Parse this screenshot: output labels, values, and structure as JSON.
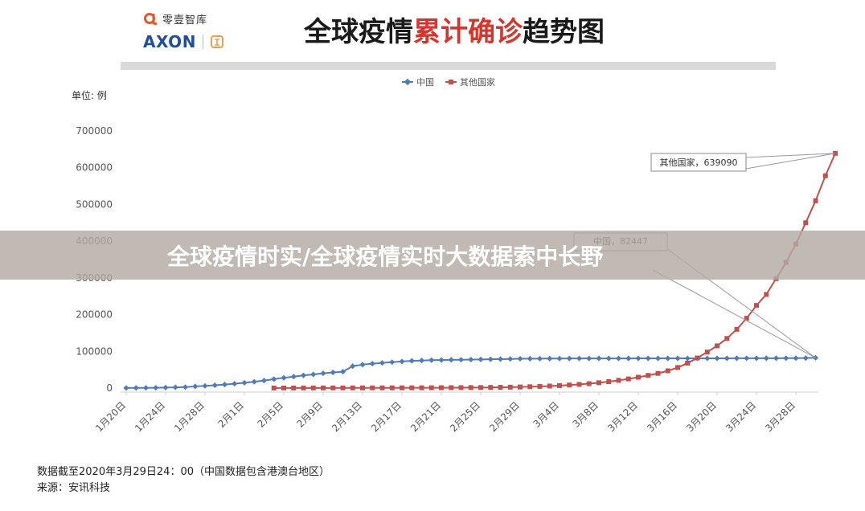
{
  "header": {
    "logo_cn": "零壹智库",
    "logo_en": "AXON",
    "title_part1": "全球疫情",
    "title_highlight": "累计确诊",
    "title_part2": "趋势图"
  },
  "overlay": {
    "text": "全球疫情时实/全球疫情实时大数据索中长野"
  },
  "footer": {
    "line1": "数据截至2020年3月29日24：00（中国数据包含港澳台地区）",
    "line2": "来源：安讯科技"
  },
  "colors": {
    "china": "#4f7bb8",
    "others": "#c0504d",
    "title_accent": "#d8342c"
  },
  "chart_data": {
    "type": "line",
    "unit_label": "单位: 例",
    "ylim": [
      0,
      700000
    ],
    "y_ticks": [
      "0",
      "100000",
      "200000",
      "300000",
      "400000",
      "500000",
      "600000",
      "700000"
    ],
    "x_tick_labels": [
      "1月20日",
      "1月24日",
      "1月28日",
      "2月1日",
      "2月5日",
      "2月9日",
      "2月13日",
      "2月17日",
      "2月21日",
      "2月25日",
      "2月29日",
      "3月4日",
      "3月8日",
      "3月12日",
      "3月16日",
      "3月20日",
      "3月24日",
      "3月28日"
    ],
    "legend_position": "top-center",
    "grid": false,
    "annotations": [
      {
        "series": "其他国家",
        "text": "其他国家，639090"
      },
      {
        "series": "中国",
        "text": "中国，82447"
      }
    ],
    "series": [
      {
        "name": "中国",
        "start": "1月20日",
        "values": [
          291,
          440,
          571,
          830,
          1287,
          1975,
          2744,
          4515,
          5974,
          7711,
          9692,
          11791,
          14380,
          17205,
          20438,
          24324,
          28018,
          31161,
          34546,
          37198,
          40171,
          42638,
          44653,
          59804,
          63851,
          66492,
          68500,
          70548,
          72436,
          74185,
          75002,
          75891,
          76288,
          76936,
          77150,
          77658,
          78064,
          78497,
          78824,
          79251,
          79824,
          80026,
          80151,
          80270,
          80409,
          80552,
          80651,
          80695,
          80735,
          80754,
          80778,
          80793,
          80813,
          80824,
          80844,
          80860,
          80881,
          80894,
          80928,
          80967,
          81008,
          81054,
          81093,
          81171,
          81218,
          81285,
          81340,
          81394,
          81470,
          81691,
          82447
        ]
      },
      {
        "name": "其他国家",
        "start": "2月4日",
        "values": [
          200,
          230,
          260,
          290,
          320,
          350,
          380,
          420,
          450,
          480,
          520,
          560,
          600,
          650,
          700,
          780,
          860,
          950,
          1050,
          1150,
          1300,
          1500,
          1750,
          2100,
          2500,
          3000,
          3700,
          4500,
          5500,
          6800,
          8300,
          10000,
          12000,
          14500,
          17500,
          21000,
          25000,
          29500,
          34500,
          40000,
          47000,
          56000,
          68000,
          82000,
          98000,
          115000,
          135000,
          160000,
          190000,
          225000,
          255000,
          298000,
          342000,
          392000,
          450000,
          510000,
          578000,
          639090
        ]
      }
    ]
  }
}
